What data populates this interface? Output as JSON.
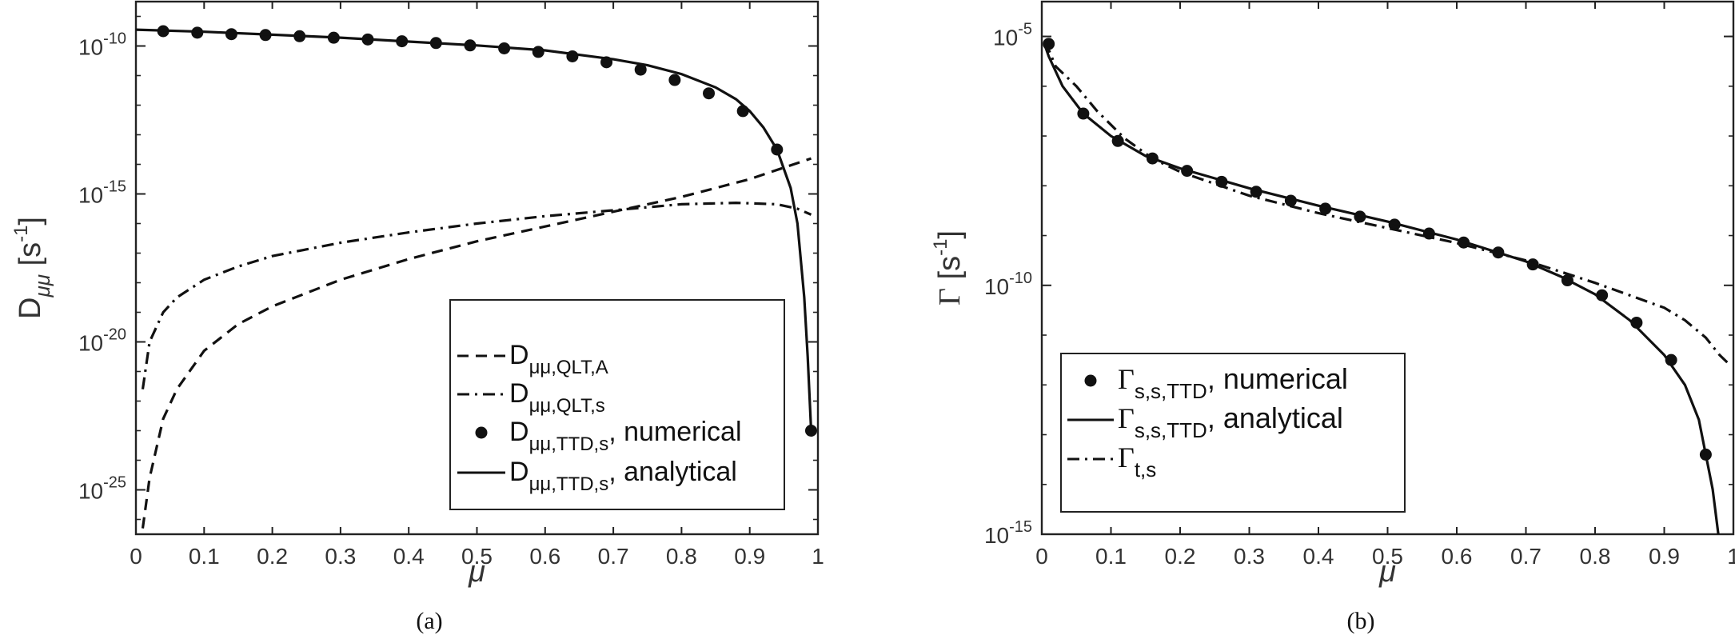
{
  "chart_data": [
    {
      "type": "line",
      "panel_label": "(a)",
      "xlabel": "μ",
      "ylabel": {
        "base": "D",
        "sub": "μμ",
        "unit_pre": " [s",
        "unit_sup": "-1",
        "unit_post": "]"
      },
      "xlim": [
        0,
        1
      ],
      "ylim_log10": [
        -26.5,
        -8.5
      ],
      "y_scale": "log",
      "grid": false,
      "legend_position": "bottom-right",
      "xticks": [
        "0",
        "0.1",
        "0.2",
        "0.3",
        "0.4",
        "0.5",
        "0.6",
        "0.7",
        "0.8",
        "0.9",
        "1"
      ],
      "yticks": [
        {
          "base": "10",
          "exp": "-10",
          "log10": -10
        },
        {
          "base": "10",
          "exp": "-15",
          "log10": -15
        },
        {
          "base": "10",
          "exp": "-20",
          "log10": -20
        },
        {
          "base": "10",
          "exp": "-25",
          "log10": -25
        }
      ],
      "series": [
        {
          "legend_main": "D",
          "legend_sub": "μμ,QLT,A",
          "legend_tail": "",
          "style": "dashed",
          "x": [
            0.01,
            0.02,
            0.04,
            0.06,
            0.1,
            0.15,
            0.2,
            0.3,
            0.4,
            0.5,
            0.6,
            0.7,
            0.8,
            0.9,
            0.99
          ],
          "log10_y": [
            -26.3,
            -24.6,
            -22.6,
            -21.6,
            -20.3,
            -19.4,
            -18.8,
            -17.9,
            -17.2,
            -16.6,
            -16.1,
            -15.6,
            -15.1,
            -14.5,
            -13.8
          ]
        },
        {
          "legend_main": "D",
          "legend_sub": "μμ,QLT,s",
          "legend_tail": "",
          "style": "dash-dot",
          "x": [
            0.01,
            0.02,
            0.04,
            0.06,
            0.1,
            0.15,
            0.2,
            0.3,
            0.4,
            0.5,
            0.6,
            0.7,
            0.8,
            0.88,
            0.94,
            0.97,
            0.99
          ],
          "log10_y": [
            -21.6,
            -20.0,
            -19.0,
            -18.5,
            -17.9,
            -17.45,
            -17.1,
            -16.65,
            -16.3,
            -16.0,
            -15.75,
            -15.55,
            -15.35,
            -15.3,
            -15.35,
            -15.5,
            -15.7
          ]
        },
        {
          "legend_main": "D",
          "legend_sub": "μμ,TTD,s",
          "legend_tail": ", numerical",
          "style": "markers",
          "x": [
            0.04,
            0.09,
            0.14,
            0.19,
            0.24,
            0.29,
            0.34,
            0.39,
            0.44,
            0.49,
            0.54,
            0.59,
            0.64,
            0.69,
            0.74,
            0.79,
            0.84,
            0.89,
            0.94,
            0.99
          ],
          "log10_y": [
            -9.5,
            -9.55,
            -9.6,
            -9.63,
            -9.67,
            -9.72,
            -9.78,
            -9.84,
            -9.9,
            -9.98,
            -10.08,
            -10.2,
            -10.35,
            -10.55,
            -10.8,
            -11.15,
            -11.6,
            -12.2,
            -13.5,
            -23.0
          ]
        },
        {
          "legend_main": "D",
          "legend_sub": "μμ,TTD,s",
          "legend_tail": ", analytical",
          "style": "solid",
          "x": [
            0.0,
            0.1,
            0.2,
            0.3,
            0.4,
            0.5,
            0.6,
            0.7,
            0.75,
            0.8,
            0.85,
            0.88,
            0.9,
            0.92,
            0.94,
            0.96,
            0.97,
            0.98,
            0.985,
            0.99
          ],
          "log10_y": [
            -9.45,
            -9.52,
            -9.62,
            -9.72,
            -9.85,
            -9.98,
            -10.15,
            -10.45,
            -10.65,
            -10.95,
            -11.4,
            -11.8,
            -12.2,
            -12.75,
            -13.5,
            -14.8,
            -16.0,
            -18.5,
            -20.5,
            -23.0
          ]
        }
      ]
    },
    {
      "type": "line",
      "panel_label": "(b)",
      "xlabel": "μ",
      "ylabel": {
        "base": "Γ",
        "sub": "",
        "unit_pre": " [s",
        "unit_sup": "-1",
        "unit_post": "]"
      },
      "xlim": [
        0,
        1
      ],
      "ylim_log10": [
        -15,
        -4.3
      ],
      "y_scale": "log",
      "grid": false,
      "legend_position": "bottom-left",
      "xticks": [
        "0",
        "0.1",
        "0.2",
        "0.3",
        "0.4",
        "0.5",
        "0.6",
        "0.7",
        "0.8",
        "0.9",
        "1"
      ],
      "yticks": [
        {
          "base": "10",
          "exp": "-5",
          "log10": -5
        },
        {
          "base": "10",
          "exp": "-10",
          "log10": -10
        },
        {
          "base": "10",
          "exp": "-15",
          "log10": -15
        }
      ],
      "series": [
        {
          "legend_main": "Γ",
          "legend_sub": "s,s,TTD",
          "legend_tail": ", numerical",
          "style": "markers",
          "x": [
            0.01,
            0.06,
            0.11,
            0.16,
            0.21,
            0.26,
            0.31,
            0.36,
            0.41,
            0.46,
            0.51,
            0.56,
            0.61,
            0.66,
            0.71,
            0.76,
            0.81,
            0.86,
            0.91,
            0.96
          ],
          "log10_y": [
            -5.15,
            -6.55,
            -7.1,
            -7.45,
            -7.7,
            -7.92,
            -8.12,
            -8.3,
            -8.46,
            -8.62,
            -8.78,
            -8.96,
            -9.14,
            -9.34,
            -9.58,
            -9.9,
            -10.2,
            -10.75,
            -11.5,
            -13.4
          ]
        },
        {
          "legend_main": "Γ",
          "legend_sub": "s,s,TTD",
          "legend_tail": ", analytical",
          "style": "solid",
          "x": [
            0.005,
            0.01,
            0.03,
            0.06,
            0.1,
            0.15,
            0.2,
            0.3,
            0.4,
            0.5,
            0.6,
            0.7,
            0.75,
            0.8,
            0.85,
            0.9,
            0.93,
            0.95,
            0.97,
            0.98
          ],
          "log10_y": [
            -5.2,
            -5.4,
            -6.0,
            -6.55,
            -7.0,
            -7.4,
            -7.65,
            -8.05,
            -8.4,
            -8.72,
            -9.08,
            -9.52,
            -9.82,
            -10.18,
            -10.7,
            -11.4,
            -12.0,
            -12.7,
            -14.1,
            -15.2
          ]
        },
        {
          "legend_main": "Γ",
          "legend_sub": "t,s",
          "legend_tail": "",
          "style": "dash-dot",
          "x": [
            0.005,
            0.02,
            0.05,
            0.08,
            0.12,
            0.16,
            0.2,
            0.3,
            0.4,
            0.5,
            0.6,
            0.7,
            0.8,
            0.85,
            0.9,
            0.93,
            0.96,
            0.98,
            0.995
          ],
          "log10_y": [
            -5.1,
            -5.6,
            -6.0,
            -6.5,
            -7.05,
            -7.45,
            -7.72,
            -8.2,
            -8.55,
            -8.85,
            -9.15,
            -9.5,
            -9.95,
            -10.2,
            -10.45,
            -10.7,
            -11.05,
            -11.4,
            -11.6
          ]
        }
      ]
    }
  ]
}
